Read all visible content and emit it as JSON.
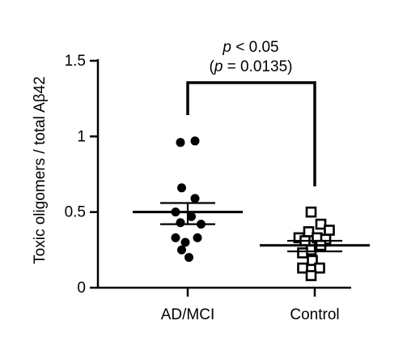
{
  "chart_data": {
    "type": "scatter",
    "ylabel": "Toxic oligomers / total Aβ42",
    "ylim": [
      0,
      1.5
    ],
    "yticks": [
      {
        "value": 0,
        "label": "0"
      },
      {
        "value": 0.5,
        "label": "0.5"
      },
      {
        "value": 1,
        "label": "1"
      },
      {
        "value": 1.5,
        "label": "1.5"
      }
    ],
    "categories": [
      "AD/MCI",
      "Control"
    ],
    "groups": [
      {
        "category": "AD/MCI",
        "marker": "filled-circle",
        "mean": 0.5,
        "sem_upper": 0.56,
        "sem_lower": 0.42,
        "points": [
          {
            "offset": -0.06,
            "y": 0.96
          },
          {
            "offset": 0.06,
            "y": 0.97
          },
          {
            "offset": -0.05,
            "y": 0.66
          },
          {
            "offset": 0.06,
            "y": 0.59
          },
          {
            "offset": -0.1,
            "y": 0.5
          },
          {
            "offset": 0.03,
            "y": 0.47
          },
          {
            "offset": -0.06,
            "y": 0.43
          },
          {
            "offset": 0.11,
            "y": 0.42
          },
          {
            "offset": -0.1,
            "y": 0.33
          },
          {
            "offset": 0.08,
            "y": 0.33
          },
          {
            "offset": -0.02,
            "y": 0.3
          },
          {
            "offset": -0.05,
            "y": 0.25
          },
          {
            "offset": 0.01,
            "y": 0.2
          }
        ]
      },
      {
        "category": "Control",
        "marker": "open-square",
        "mean": 0.28,
        "sem_upper": 0.31,
        "sem_lower": 0.24,
        "points": [
          {
            "offset": -0.03,
            "y": 0.5
          },
          {
            "offset": 0.05,
            "y": 0.42
          },
          {
            "offset": 0.12,
            "y": 0.38
          },
          {
            "offset": -0.05,
            "y": 0.37
          },
          {
            "offset": -0.13,
            "y": 0.33
          },
          {
            "offset": 0.02,
            "y": 0.33
          },
          {
            "offset": 0.09,
            "y": 0.32
          },
          {
            "offset": -0.08,
            "y": 0.31
          },
          {
            "offset": 0.05,
            "y": 0.28
          },
          {
            "offset": -0.03,
            "y": 0.25
          },
          {
            "offset": -0.1,
            "y": 0.23
          },
          {
            "offset": -0.02,
            "y": 0.18
          },
          {
            "offset": -0.1,
            "y": 0.13
          },
          {
            "offset": 0.04,
            "y": 0.13
          },
          {
            "offset": -0.03,
            "y": 0.08
          }
        ]
      }
    ],
    "annotation": {
      "line1_italic": "p",
      "line1_rest": " < 0.05",
      "line2_open": "(",
      "line2_italic": "p",
      "line2_rest": " = 0.0135)"
    }
  }
}
